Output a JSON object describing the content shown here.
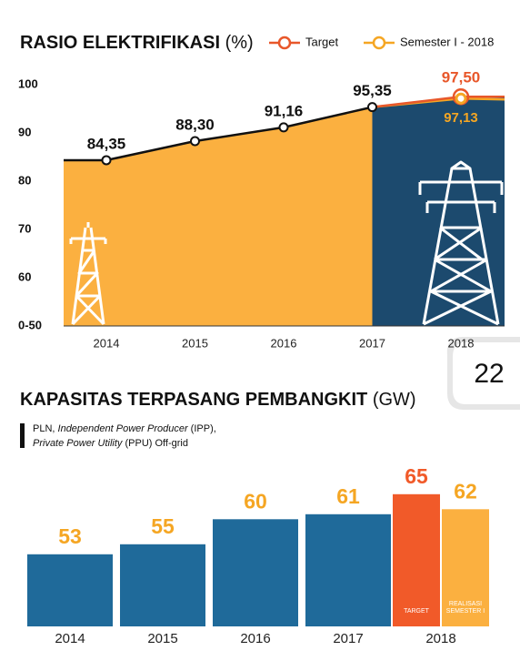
{
  "chart_data": [
    {
      "type": "area-line",
      "title": "RASIO ELEKTRIFIKASI",
      "title_unit": "(%)",
      "categories": [
        "2014",
        "2015",
        "2016",
        "2017",
        "2018"
      ],
      "series": [
        {
          "color": "#111111",
          "fill": "#fbb040",
          "values": [
            84.35,
            88.3,
            91.16,
            95.35,
            null
          ],
          "value_labels": [
            "84,35",
            "88,30",
            "91,16",
            "95,35",
            null
          ]
        },
        {
          "name": "Target",
          "color": "#e8572a",
          "values": [
            null,
            null,
            null,
            null,
            97.5
          ],
          "value_labels": [
            null,
            null,
            null,
            null,
            "97,50"
          ]
        },
        {
          "name": "Semester I - 2018",
          "color": "#f5a623",
          "fill": "#1c4a6e",
          "values": [
            null,
            null,
            null,
            null,
            97.13
          ],
          "value_labels": [
            null,
            null,
            null,
            null,
            "97,13"
          ]
        }
      ],
      "ylim": [
        50,
        100
      ],
      "yticks": [
        {
          "value": 50,
          "label": "0-50"
        },
        60,
        70,
        80,
        90,
        100
      ],
      "grid": false
    },
    {
      "type": "bar",
      "title": "KAPASITAS TERPASANG PEMBANGKIT",
      "title_unit": "(GW)",
      "note": [
        [
          {
            "text": "PLN, "
          },
          {
            "text": "Independent Power Producer",
            "italic": true
          },
          {
            "text": " (IPP),"
          }
        ],
        [
          {
            "text": "Private Power Utility",
            "italic": true
          },
          {
            "text": " (PPU) Off-grid"
          }
        ]
      ],
      "categories": [
        "2014",
        "2015",
        "2016",
        "2017",
        "2018"
      ],
      "series": [
        {
          "color": "#1f6a9a",
          "label_color": "#f5a623",
          "values": [
            53,
            55,
            60,
            61,
            null
          ]
        },
        {
          "name": "TARGET",
          "color": "#f15a29",
          "label_color": "#f15a29",
          "values": [
            null,
            null,
            null,
            null,
            65
          ]
        },
        {
          "name": "REALISASI SEMESTER I",
          "color": "#fbb040",
          "label_color": "#f5a623",
          "values": [
            null,
            null,
            null,
            null,
            62
          ]
        }
      ],
      "ylim": [
        38.6,
        66
      ],
      "grid": false
    }
  ],
  "page_number": "22"
}
